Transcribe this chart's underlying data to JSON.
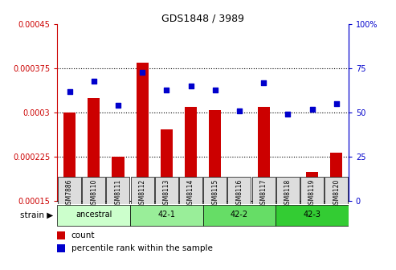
{
  "title": "GDS1848 / 3989",
  "samples": [
    "GSM7886",
    "GSM8110",
    "GSM8111",
    "GSM8112",
    "GSM8113",
    "GSM8114",
    "GSM8115",
    "GSM8116",
    "GSM8117",
    "GSM8118",
    "GSM8119",
    "GSM8120"
  ],
  "counts": [
    0.0003005,
    0.000325,
    0.000225,
    0.000385,
    0.000272,
    0.00031,
    0.000305,
    0.000175,
    0.00031,
    0.000162,
    0.0002,
    0.000232
  ],
  "percentiles": [
    62,
    68,
    54,
    73,
    63,
    65,
    63,
    51,
    67,
    49,
    52,
    55
  ],
  "ylim_left": [
    0.00015,
    0.00045
  ],
  "ylim_right": [
    0,
    100
  ],
  "yticks_left": [
    0.00015,
    0.000225,
    0.0003,
    0.000375,
    0.00045
  ],
  "ytick_labels_left": [
    "0.00015",
    "0.000225",
    "0.0003",
    "0.000375",
    "0.00045"
  ],
  "yticks_right": [
    0,
    25,
    50,
    75,
    100
  ],
  "ytick_labels_right": [
    "0",
    "25",
    "50",
    "75",
    "100%"
  ],
  "bar_color": "#cc0000",
  "scatter_color": "#0000cc",
  "groups": [
    {
      "label": "ancestral",
      "start": 0,
      "end": 3,
      "color": "#ccffcc"
    },
    {
      "label": "42-1",
      "start": 3,
      "end": 6,
      "color": "#99ee99"
    },
    {
      "label": "42-2",
      "start": 6,
      "end": 9,
      "color": "#66dd66"
    },
    {
      "label": "42-3",
      "start": 9,
      "end": 12,
      "color": "#33cc33"
    }
  ],
  "strain_label": "strain",
  "legend_count_label": "count",
  "legend_pct_label": "percentile rank within the sample",
  "bg_color": "#ffffff",
  "tick_color_left": "#cc0000",
  "tick_color_right": "#0000cc",
  "xtick_bg": "#dddddd",
  "hgrid_vals": [
    0.000225,
    0.0003,
    0.000375
  ]
}
